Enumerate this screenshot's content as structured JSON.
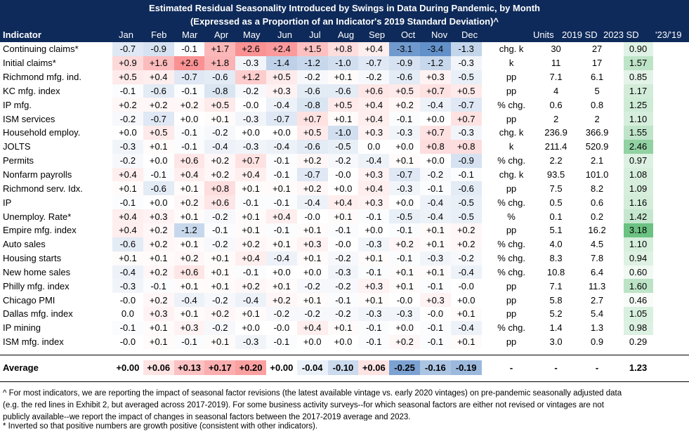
{
  "title": "Estimated Residual Seasonality Introduced by Swings in Data During Pandemic, by Month",
  "subtitle": "(Expressed as a Proportion of an Indicator's 2019 Standard Deviation)^",
  "headers": {
    "indicator": "Indicator",
    "months": [
      "Jan",
      "Feb",
      "Mar",
      "Apr",
      "May",
      "Jun",
      "Jul",
      "Aug",
      "Sep",
      "Oct",
      "Nov",
      "Dec"
    ],
    "units": "Units",
    "sd2019": "2019 SD",
    "sd2023": "2023 SD",
    "ratio": "'23/'19"
  },
  "rows": [
    {
      "name": "Continuing claims*",
      "values": [
        "-0.7",
        "-0.9",
        "-0.1",
        "+1.7",
        "+2.6",
        "+2.4",
        "+1.5",
        "+0.8",
        "+0.4",
        "-3.1",
        "-3.4",
        "-1.3"
      ],
      "units": "chg. k",
      "sd2019": "30",
      "sd2023": "27",
      "ratio": "0.90"
    },
    {
      "name": "Initial claims*",
      "values": [
        "+0.9",
        "+1.6",
        "+2.6",
        "+1.8",
        "-0.3",
        "-1.4",
        "-1.2",
        "-1.0",
        "-0.7",
        "-0.9",
        "-1.2",
        "-0.3"
      ],
      "units": "k",
      "sd2019": "11",
      "sd2023": "17",
      "ratio": "1.57"
    },
    {
      "name": "Richmond mfg. ind.",
      "values": [
        "+0.5",
        "+0.4",
        "-0.7",
        "-0.6",
        "+1.2",
        "+0.5",
        "-0.2",
        "+0.1",
        "-0.2",
        "-0.6",
        "+0.3",
        "-0.5"
      ],
      "units": "pp",
      "sd2019": "7.1",
      "sd2023": "6.1",
      "ratio": "0.85"
    },
    {
      "name": "KC mfg. index",
      "values": [
        "-0.1",
        "-0.6",
        "-0.1",
        "-0.8",
        "-0.2",
        "+0.3",
        "-0.6",
        "-0.6",
        "+0.6",
        "+0.5",
        "+0.7",
        "+0.5"
      ],
      "units": "pp",
      "sd2019": "4",
      "sd2023": "5",
      "ratio": "1.17"
    },
    {
      "name": "IP mfg.",
      "values": [
        "+0.2",
        "+0.2",
        "+0.2",
        "+0.5",
        "-0.0",
        "-0.4",
        "-0.8",
        "+0.5",
        "+0.4",
        "+0.2",
        "-0.4",
        "-0.7"
      ],
      "units": "% chg.",
      "sd2019": "0.6",
      "sd2023": "0.8",
      "ratio": "1.25"
    },
    {
      "name": "ISM services",
      "values": [
        "-0.2",
        "-0.7",
        "+0.0",
        "+0.1",
        "-0.3",
        "-0.7",
        "+0.7",
        "+0.1",
        "+0.4",
        "-0.1",
        "+0.0",
        "+0.7"
      ],
      "units": "pp",
      "sd2019": "2",
      "sd2023": "2",
      "ratio": "1.10"
    },
    {
      "name": "Household employ.",
      "values": [
        "+0.0",
        "+0.5",
        "-0.1",
        "-0.2",
        "+0.0",
        "+0.0",
        "+0.5",
        "-1.0",
        "+0.3",
        "-0.3",
        "+0.7",
        "-0.3"
      ],
      "units": "chg. k",
      "sd2019": "236.9",
      "sd2023": "366.9",
      "ratio": "1.55"
    },
    {
      "name": "JOLTS",
      "values": [
        "-0.3",
        "+0.1",
        "-0.1",
        "-0.4",
        "-0.3",
        "-0.4",
        "-0.6",
        "-0.5",
        "0.0",
        "+0.0",
        "+0.8",
        "+0.8"
      ],
      "units": "k",
      "sd2019": "211.4",
      "sd2023": "520.9",
      "ratio": "2.46"
    },
    {
      "name": "Permits",
      "values": [
        "-0.2",
        "+0.0",
        "+0.6",
        "+0.2",
        "+0.7",
        "-0.1",
        "+0.2",
        "-0.2",
        "-0.4",
        "+0.1",
        "+0.0",
        "-0.9"
      ],
      "units": "% chg.",
      "sd2019": "2.2",
      "sd2023": "2.1",
      "ratio": "0.97"
    },
    {
      "name": "Nonfarm payrolls",
      "values": [
        "+0.4",
        "-0.1",
        "+0.4",
        "+0.2",
        "+0.4",
        "-0.1",
        "-0.7",
        "-0.0",
        "+0.3",
        "-0.7",
        "-0.2",
        "-0.1"
      ],
      "units": "chg. k",
      "sd2019": "93.5",
      "sd2023": "101.0",
      "ratio": "1.08"
    },
    {
      "name": "Richmond serv. Idx.",
      "values": [
        "+0.1",
        "-0.6",
        "+0.1",
        "+0.8",
        "+0.1",
        "+0.1",
        "+0.2",
        "+0.0",
        "+0.4",
        "-0.3",
        "-0.1",
        "-0.6"
      ],
      "units": "pp",
      "sd2019": "7.5",
      "sd2023": "8.2",
      "ratio": "1.09"
    },
    {
      "name": "IP",
      "values": [
        "-0.1",
        "+0.0",
        "+0.2",
        "+0.6",
        "-0.1",
        "-0.1",
        "-0.4",
        "+0.4",
        "+0.3",
        "+0.0",
        "-0.4",
        "-0.5"
      ],
      "units": "% chg.",
      "sd2019": "0.5",
      "sd2023": "0.6",
      "ratio": "1.16"
    },
    {
      "name": "Unemploy. Rate*",
      "values": [
        "+0.4",
        "+0.3",
        "+0.1",
        "-0.2",
        "+0.1",
        "+0.4",
        "-0.0",
        "+0.1",
        "-0.1",
        "-0.5",
        "-0.4",
        "-0.5"
      ],
      "units": "%",
      "sd2019": "0.1",
      "sd2023": "0.2",
      "ratio": "1.42"
    },
    {
      "name": "Empire mfg. index",
      "values": [
        "+0.4",
        "+0.2",
        "-1.2",
        "-0.1",
        "+0.1",
        "-0.1",
        "+0.1",
        "-0.1",
        "+0.0",
        "-0.1",
        "+0.1",
        "+0.2"
      ],
      "units": "pp",
      "sd2019": "5.1",
      "sd2023": "16.2",
      "ratio": "3.18"
    },
    {
      "name": "Auto sales",
      "values": [
        "-0.6",
        "+0.2",
        "+0.1",
        "-0.2",
        "+0.2",
        "+0.1",
        "+0.3",
        "-0.0",
        "-0.3",
        "+0.2",
        "+0.1",
        "+0.2"
      ],
      "units": "% chg.",
      "sd2019": "4.0",
      "sd2023": "4.5",
      "ratio": "1.10"
    },
    {
      "name": "Housing starts",
      "values": [
        "+0.1",
        "+0.1",
        "+0.2",
        "+0.1",
        "+0.4",
        "-0.4",
        "+0.1",
        "-0.2",
        "+0.1",
        "-0.1",
        "-0.3",
        "-0.2"
      ],
      "units": "% chg.",
      "sd2019": "8.3",
      "sd2023": "7.8",
      "ratio": "0.94"
    },
    {
      "name": "New home sales",
      "values": [
        "-0.4",
        "+0.2",
        "+0.6",
        "+0.1",
        "-0.1",
        "+0.0",
        "+0.0",
        "-0.3",
        "-0.1",
        "+0.1",
        "+0.1",
        "-0.4"
      ],
      "units": "% chg.",
      "sd2019": "10.8",
      "sd2023": "6.4",
      "ratio": "0.60"
    },
    {
      "name": "Philly mfg. index",
      "values": [
        "-0.3",
        "-0.1",
        "+0.1",
        "+0.1",
        "+0.2",
        "+0.1",
        "-0.2",
        "-0.2",
        "+0.3",
        "+0.1",
        "-0.1",
        "-0.0"
      ],
      "units": "pp",
      "sd2019": "7.1",
      "sd2023": "11.3",
      "ratio": "1.60"
    },
    {
      "name": "Chicago PMI",
      "values": [
        "-0.0",
        "+0.2",
        "-0.4",
        "-0.2",
        "-0.4",
        "+0.2",
        "+0.1",
        "-0.1",
        "+0.1",
        "-0.0",
        "+0.3",
        "+0.0"
      ],
      "units": "pp",
      "sd2019": "5.8",
      "sd2023": "2.7",
      "ratio": "0.46"
    },
    {
      "name": "Dallas mfg. index",
      "values": [
        "0.0",
        "+0.3",
        "+0.1",
        "+0.2",
        "+0.1",
        "-0.2",
        "-0.2",
        "-0.2",
        "-0.3",
        "-0.3",
        "-0.0",
        "+0.1"
      ],
      "units": "pp",
      "sd2019": "5.2",
      "sd2023": "5.4",
      "ratio": "1.05"
    },
    {
      "name": "IP mining",
      "values": [
        "-0.1",
        "+0.1",
        "+0.3",
        "-0.2",
        "+0.0",
        "-0.0",
        "+0.4",
        "+0.1",
        "-0.1",
        "+0.0",
        "-0.1",
        "-0.4"
      ],
      "units": "% chg.",
      "sd2019": "1.4",
      "sd2023": "1.3",
      "ratio": "0.98"
    },
    {
      "name": "ISM mfg. index",
      "values": [
        "-0.0",
        "+0.1",
        "-0.1",
        "+0.1",
        "-0.3",
        "-0.1",
        "+0.0",
        "+0.0",
        "-0.1",
        "+0.2",
        "-0.1",
        "+0.1"
      ],
      "units": "pp",
      "sd2019": "3.0",
      "sd2023": "0.9",
      "ratio": "0.29"
    }
  ],
  "average": {
    "label": "Average",
    "values": [
      "+0.00",
      "+0.06",
      "+0.13",
      "+0.17",
      "+0.20",
      "+0.00",
      "-0.04",
      "-0.10",
      "+0.06",
      "-0.25",
      "-0.16",
      "-0.19"
    ],
    "units": "-",
    "sd2019": "-",
    "sd2023": "-",
    "ratio": "1.23"
  },
  "footnotes": {
    "line1": "^ For most indicators, we are reporting the impact of seasonal factor revisions (the latest available vintage vs. early 2020 vintages) on pre-pandemic seasonally adjusted data",
    "line2": "(e.g. the red lines in Exhibit 2, but averaged across 2017-2019). For some business activity surveys--for which seasonal factors are either not revised or vintages are not",
    "line3": "publicly available--we report the impact of changes in seasonal factors between the 2017-2019 average and 2023.",
    "line4": "* Inverted so that positive numbers are growth positive (consistent with other indicators)."
  },
  "colors": {
    "header_bg": "#0e2a5a",
    "positive": "#f8696b",
    "negative": "#5a8ac6",
    "ratio_high": "#63be7b"
  }
}
